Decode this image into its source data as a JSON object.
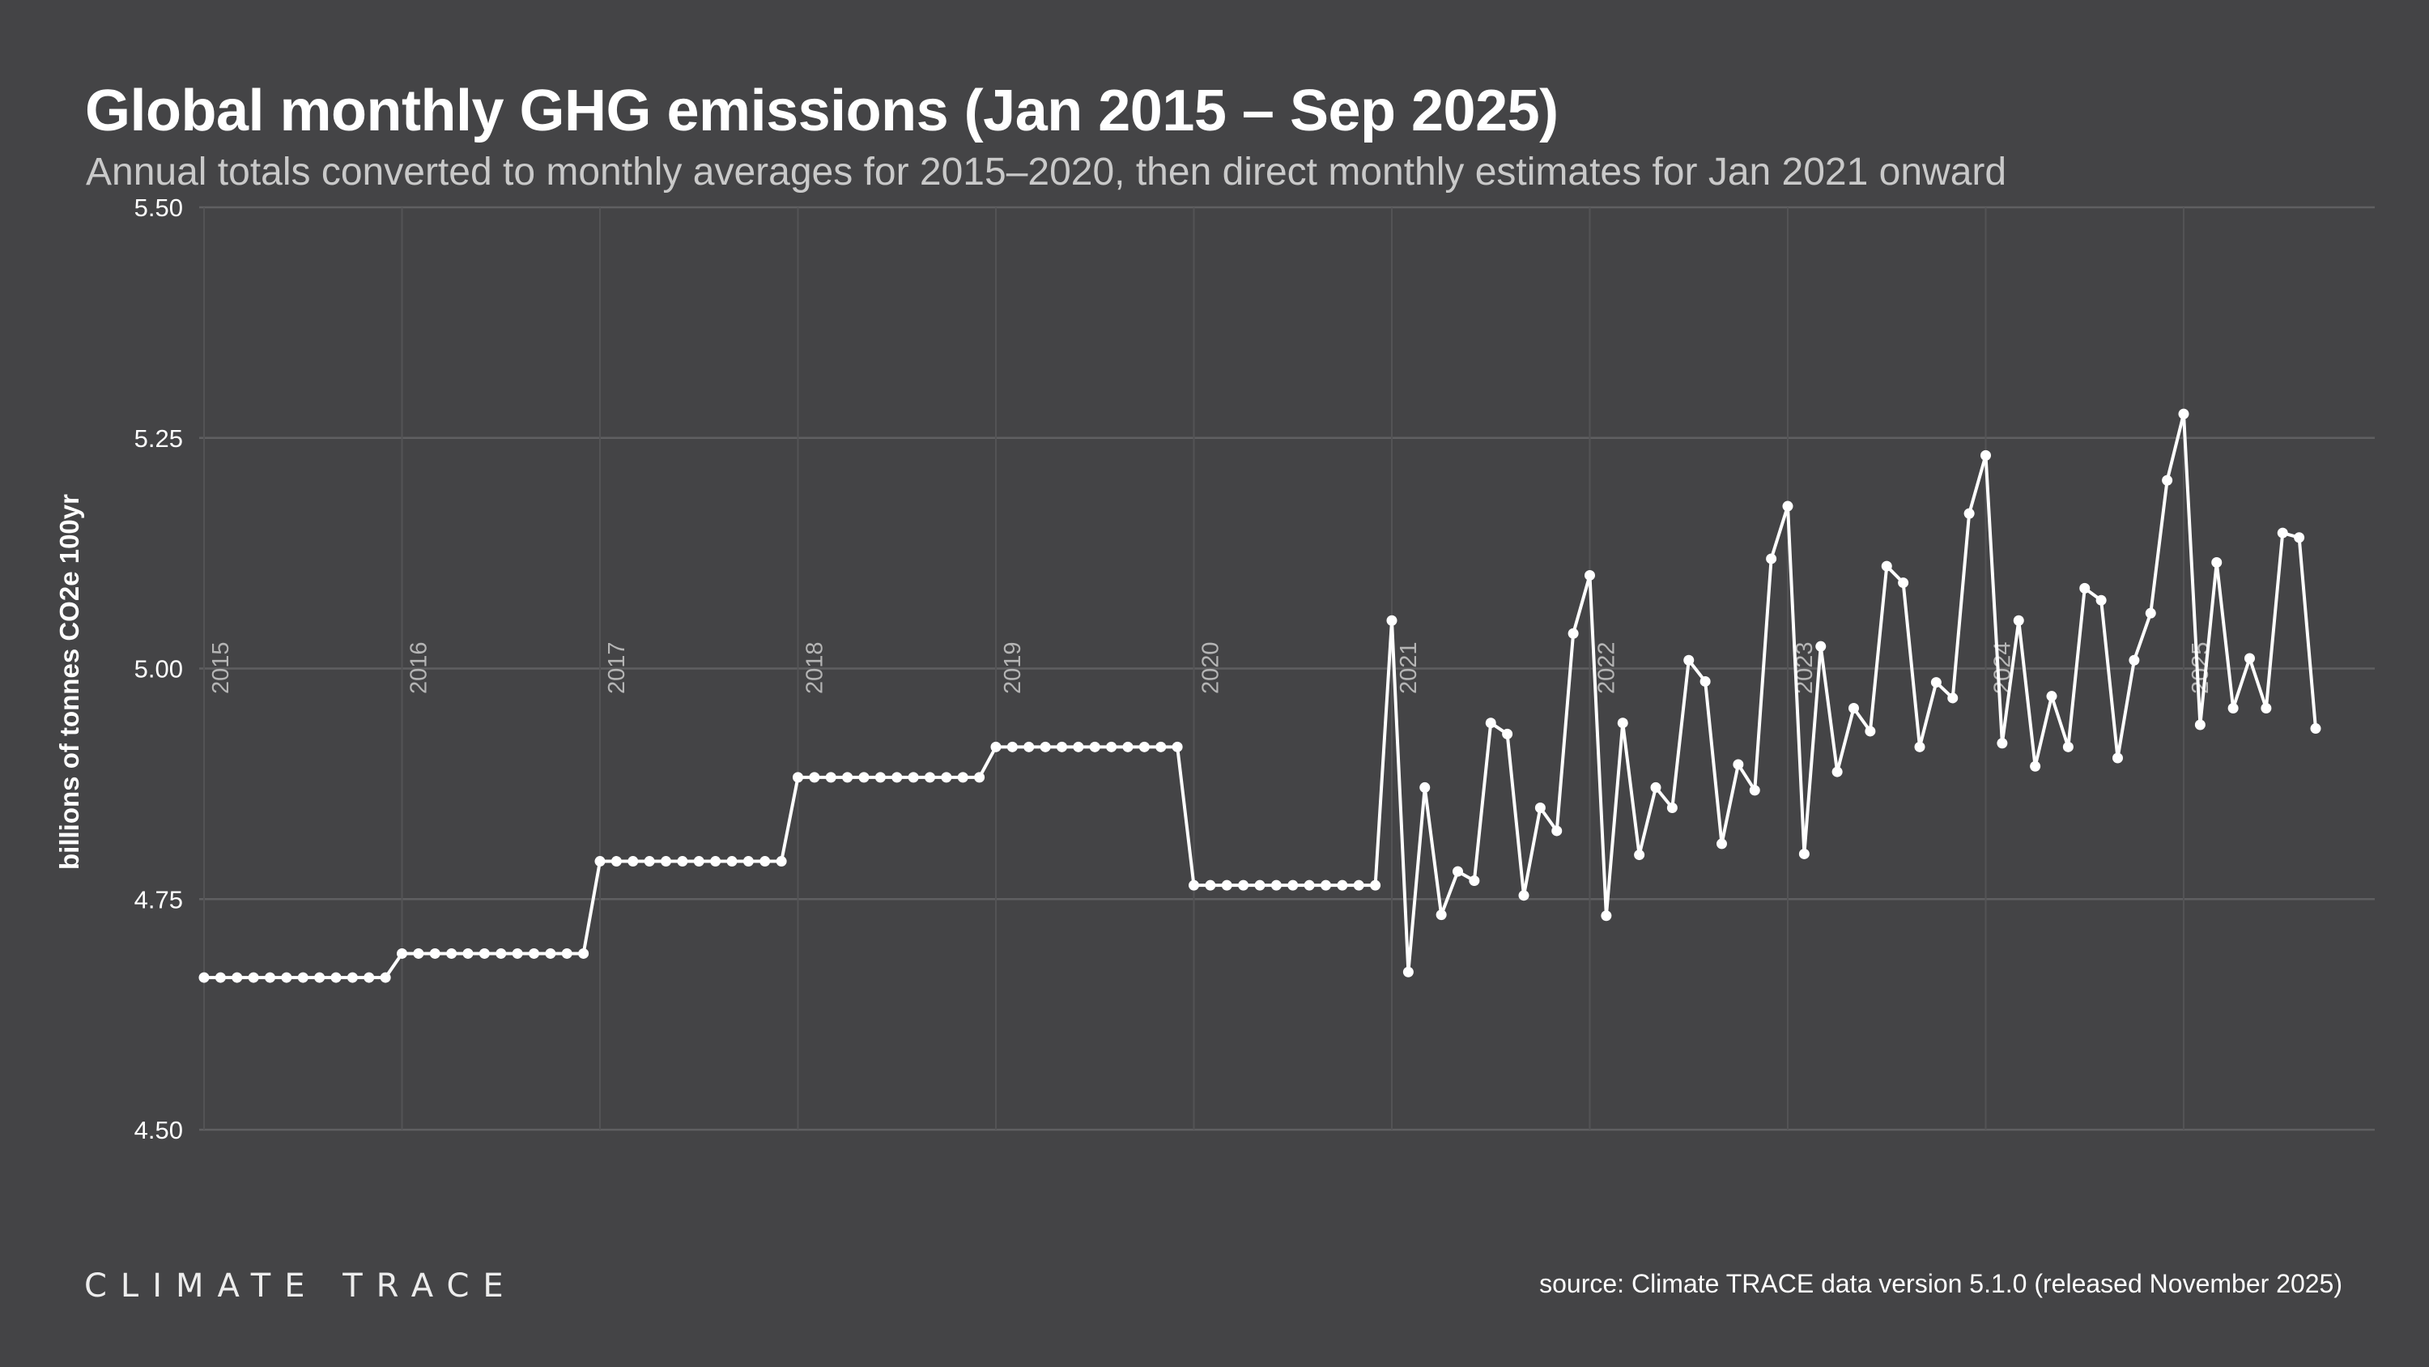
{
  "header": {
    "title": "Global monthly GHG emissions (Jan 2015 – Sep 2025)",
    "subtitle": "Annual totals converted to monthly averages for 2015–2020, then direct monthly estimates for Jan 2021 onward"
  },
  "footer": {
    "logo": "CLIMATE TRACE",
    "source": "source: Climate TRACE data version 5.1.0 (released November 2025)"
  },
  "colors": {
    "background": "#444446",
    "line": "#ffffff",
    "grid": "#5f5f61",
    "year_label": "#b5b5b5"
  },
  "chart_data": {
    "type": "line",
    "title": "Global monthly GHG emissions (Jan 2015 – Sep 2025)",
    "ylabel": "billions of tonnes CO2e 100yr",
    "xlabel": "",
    "ylim": [
      4.5,
      5.5
    ],
    "yticks": [
      "4.50",
      "4.75",
      "5.00",
      "5.25",
      "5.50"
    ],
    "xticks": [
      "2015",
      "2016",
      "2017",
      "2018",
      "2019",
      "2020",
      "2021",
      "2022",
      "2023",
      "2024",
      "2025"
    ],
    "grid": true,
    "markers": true,
    "x": [
      "2015-01",
      "2015-02",
      "2015-03",
      "2015-04",
      "2015-05",
      "2015-06",
      "2015-07",
      "2015-08",
      "2015-09",
      "2015-10",
      "2015-11",
      "2015-12",
      "2016-01",
      "2016-02",
      "2016-03",
      "2016-04",
      "2016-05",
      "2016-06",
      "2016-07",
      "2016-08",
      "2016-09",
      "2016-10",
      "2016-11",
      "2016-12",
      "2017-01",
      "2017-02",
      "2017-03",
      "2017-04",
      "2017-05",
      "2017-06",
      "2017-07",
      "2017-08",
      "2017-09",
      "2017-10",
      "2017-11",
      "2017-12",
      "2018-01",
      "2018-02",
      "2018-03",
      "2018-04",
      "2018-05",
      "2018-06",
      "2018-07",
      "2018-08",
      "2018-09",
      "2018-10",
      "2018-11",
      "2018-12",
      "2019-01",
      "2019-02",
      "2019-03",
      "2019-04",
      "2019-05",
      "2019-06",
      "2019-07",
      "2019-08",
      "2019-09",
      "2019-10",
      "2019-11",
      "2019-12",
      "2020-01",
      "2020-02",
      "2020-03",
      "2020-04",
      "2020-05",
      "2020-06",
      "2020-07",
      "2020-08",
      "2020-09",
      "2020-10",
      "2020-11",
      "2020-12",
      "2021-01",
      "2021-02",
      "2021-03",
      "2021-04",
      "2021-05",
      "2021-06",
      "2021-07",
      "2021-08",
      "2021-09",
      "2021-10",
      "2021-11",
      "2021-12",
      "2022-01",
      "2022-02",
      "2022-03",
      "2022-04",
      "2022-05",
      "2022-06",
      "2022-07",
      "2022-08",
      "2022-09",
      "2022-10",
      "2022-11",
      "2022-12",
      "2023-01",
      "2023-02",
      "2023-03",
      "2023-04",
      "2023-05",
      "2023-06",
      "2023-07",
      "2023-08",
      "2023-09",
      "2023-10",
      "2023-11",
      "2023-12",
      "2024-01",
      "2024-02",
      "2024-03",
      "2024-04",
      "2024-05",
      "2024-06",
      "2024-07",
      "2024-08",
      "2024-09",
      "2024-10",
      "2024-11",
      "2024-12",
      "2025-01",
      "2025-02",
      "2025-03",
      "2025-04",
      "2025-05",
      "2025-06",
      "2025-07",
      "2025-08",
      "2025-09"
    ],
    "values": [
      4.665,
      4.665,
      4.665,
      4.665,
      4.665,
      4.665,
      4.665,
      4.665,
      4.665,
      4.665,
      4.665,
      4.665,
      4.691,
      4.691,
      4.691,
      4.691,
      4.691,
      4.691,
      4.691,
      4.691,
      4.691,
      4.691,
      4.691,
      4.691,
      4.791,
      4.791,
      4.791,
      4.791,
      4.791,
      4.791,
      4.791,
      4.791,
      4.791,
      4.791,
      4.791,
      4.791,
      4.882,
      4.882,
      4.882,
      4.882,
      4.882,
      4.882,
      4.882,
      4.882,
      4.882,
      4.882,
      4.882,
      4.882,
      4.915,
      4.915,
      4.915,
      4.915,
      4.915,
      4.915,
      4.915,
      4.915,
      4.915,
      4.915,
      4.915,
      4.915,
      4.765,
      4.765,
      4.765,
      4.765,
      4.765,
      4.765,
      4.765,
      4.765,
      4.765,
      4.765,
      4.765,
      4.765,
      5.052,
      4.671,
      4.871,
      4.733,
      4.78,
      4.77,
      4.941,
      4.929,
      4.754,
      4.849,
      4.824,
      5.038,
      5.101,
      4.732,
      4.941,
      4.798,
      4.871,
      4.849,
      5.009,
      4.986,
      4.81,
      4.896,
      4.868,
      5.119,
      5.176,
      4.799,
      5.024,
      4.888,
      4.957,
      4.932,
      5.111,
      5.093,
      4.915,
      4.985,
      4.968,
      5.168,
      5.231,
      4.919,
      5.052,
      4.894,
      4.97,
      4.915,
      5.087,
      5.074,
      4.903,
      5.009,
      5.06,
      5.204,
      5.276,
      4.939,
      5.115,
      4.957,
      5.011,
      4.957,
      5.147,
      5.142,
      4.935
    ]
  }
}
